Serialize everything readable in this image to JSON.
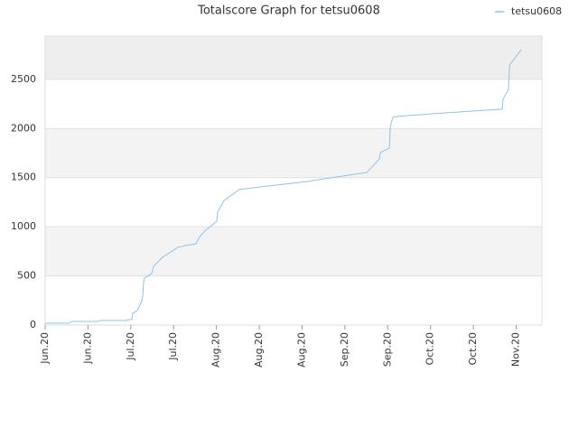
{
  "chart_data": {
    "type": "line",
    "title": "Totalscore Graph for tetsu0608",
    "series": [
      {
        "name": "tetsu0608",
        "color": "#8cc2ee",
        "x": [
          0,
          8.2,
          9.5,
          18.4,
          19,
          28.5,
          29,
          30.4,
          30.7,
          32.3,
          33.9,
          34.2,
          34.5,
          34.8,
          37.3,
          38,
          41.1,
          46.5,
          49,
          52.8,
          54,
          55.9,
          60.1,
          60.4,
          62.7,
          68,
          72.8,
          91.8,
          112.7,
          117.1,
          117.4,
          120.6,
          120.9,
          121.8,
          123.4,
          136.1,
          160.1,
          160.4,
          162.3,
          162.7,
          166.8
        ],
        "values": [
          18,
          18,
          37,
          37,
          46,
          46,
          55,
          55,
          120,
          147,
          248,
          312,
          441,
          478,
          524,
          597,
          689,
          790,
          809,
          827,
          892,
          956,
          1057,
          1149,
          1268,
          1379,
          1397,
          1461,
          1553,
          1691,
          1755,
          1801,
          2022,
          2114,
          2123,
          2151,
          2197,
          2298,
          2399,
          2647,
          2803
        ]
      }
    ],
    "xlim": [
      0,
      174
    ],
    "xticks": [
      {
        "value": 0,
        "label": "Jun.20"
      },
      {
        "value": 15,
        "label": "Jun.20"
      },
      {
        "value": 30,
        "label": "Jul.20"
      },
      {
        "value": 45,
        "label": "Jul.20"
      },
      {
        "value": 60,
        "label": "Aug.20"
      },
      {
        "value": 75,
        "label": "Aug.20"
      },
      {
        "value": 90,
        "label": "Aug.20"
      },
      {
        "value": 105,
        "label": "Sep.20"
      },
      {
        "value": 120,
        "label": "Sep.20"
      },
      {
        "value": 135,
        "label": "Oct.20"
      },
      {
        "value": 150,
        "label": "Oct.20"
      },
      {
        "value": 165,
        "label": "Nov.20"
      }
    ],
    "ylim": [
      0,
      2940
    ],
    "yticks": [
      0,
      500,
      1000,
      1500,
      2000,
      2500
    ],
    "grid": true,
    "legend": "top-right"
  }
}
